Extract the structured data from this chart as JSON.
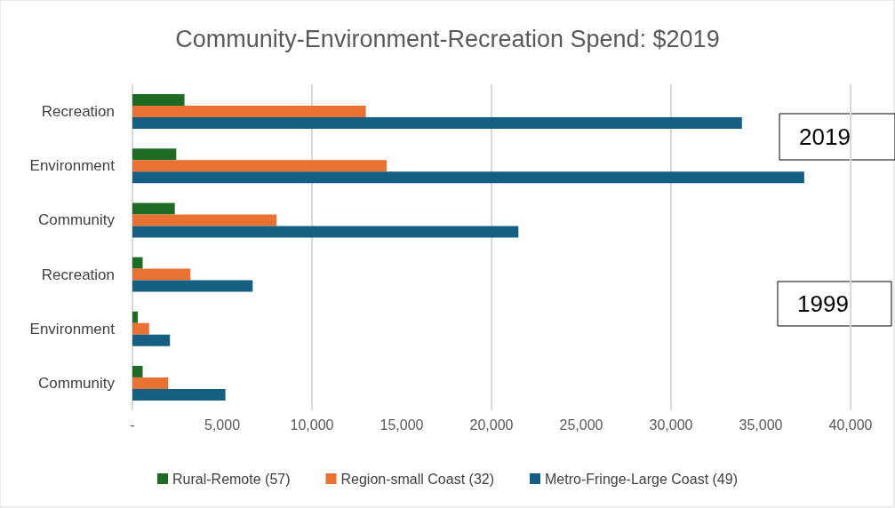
{
  "chart_data": {
    "type": "bar",
    "orientation": "horizontal",
    "title": "Community-Environment-Recreation Spend: $2019",
    "categories": [
      "Recreation",
      "Environment",
      "Community",
      "Recreation",
      "Environment",
      "Community"
    ],
    "series": [
      {
        "name": "Rural-Remote (57)",
        "color": "#1e6b24",
        "values": [
          2900,
          2440,
          2360,
          570,
          300,
          570
        ]
      },
      {
        "name": "Region-small Coast (32)",
        "color": "#e97132",
        "values": [
          13000,
          14160,
          8030,
          3230,
          930,
          1990
        ]
      },
      {
        "name": "Metro-Fringe-Large Coast (49)",
        "color": "#156082",
        "values": [
          33950,
          37420,
          21500,
          6700,
          2090,
          5180
        ]
      }
    ],
    "xlim": [
      0,
      40000
    ],
    "xticks": [
      {
        "value": 0,
        "label": "-"
      },
      {
        "value": 5000,
        "label": "5,000"
      },
      {
        "value": 10000,
        "label": "10,000"
      },
      {
        "value": 15000,
        "label": "15,000"
      },
      {
        "value": 20000,
        "label": "20,000"
      },
      {
        "value": 25000,
        "label": "25,000"
      },
      {
        "value": 30000,
        "label": "30,000"
      },
      {
        "value": 35000,
        "label": "35,000"
      },
      {
        "value": 40000,
        "label": "40,000"
      }
    ],
    "grid": "x",
    "legend": "bottom",
    "annotations": [
      "2019",
      "1999"
    ]
  }
}
